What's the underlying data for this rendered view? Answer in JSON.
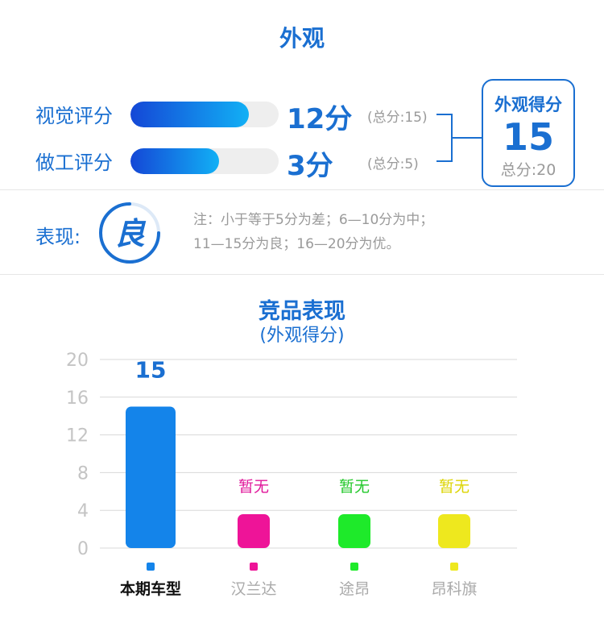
{
  "header": {
    "title": "外观"
  },
  "scores": [
    {
      "label": "视觉评分",
      "value_text": "12分",
      "total_text": "(总分:15)",
      "fraction": 0.8
    },
    {
      "label": "做工评分",
      "value_text": "3分",
      "total_text": "(总分:5)",
      "fraction": 0.6
    }
  ],
  "summary": {
    "title": "外观得分",
    "value": "15",
    "total_text": "总分:20"
  },
  "rating": {
    "label": "表现:",
    "grade": "良",
    "note_line1": "注：小于等于5分为差；6—10分为中；",
    "note_line2": "11—15分为良；16—20分为优。"
  },
  "chart_data": {
    "type": "bar",
    "title": "竞品表现",
    "subtitle": "(外观得分)",
    "categories": [
      "本期车型",
      "汉兰达",
      "途昂",
      "昂科旗"
    ],
    "values": [
      15,
      null,
      null,
      null
    ],
    "bar_labels": [
      "15",
      "暂无",
      "暂无",
      "暂无"
    ],
    "colors": [
      "#1484ea",
      "#ee1498",
      "#1eea2a",
      "#eee81e"
    ],
    "label_colors": [
      "#1a6fd1",
      "#e0169a",
      "#22c82a",
      "#dcd400"
    ],
    "category_colors": [
      "#111111",
      "#aaaaaa",
      "#aaaaaa",
      "#aaaaaa"
    ],
    "yticks": [
      "0",
      "4",
      "8",
      "12",
      "16",
      "20"
    ],
    "ylim": [
      0,
      20
    ],
    "grid": true
  }
}
